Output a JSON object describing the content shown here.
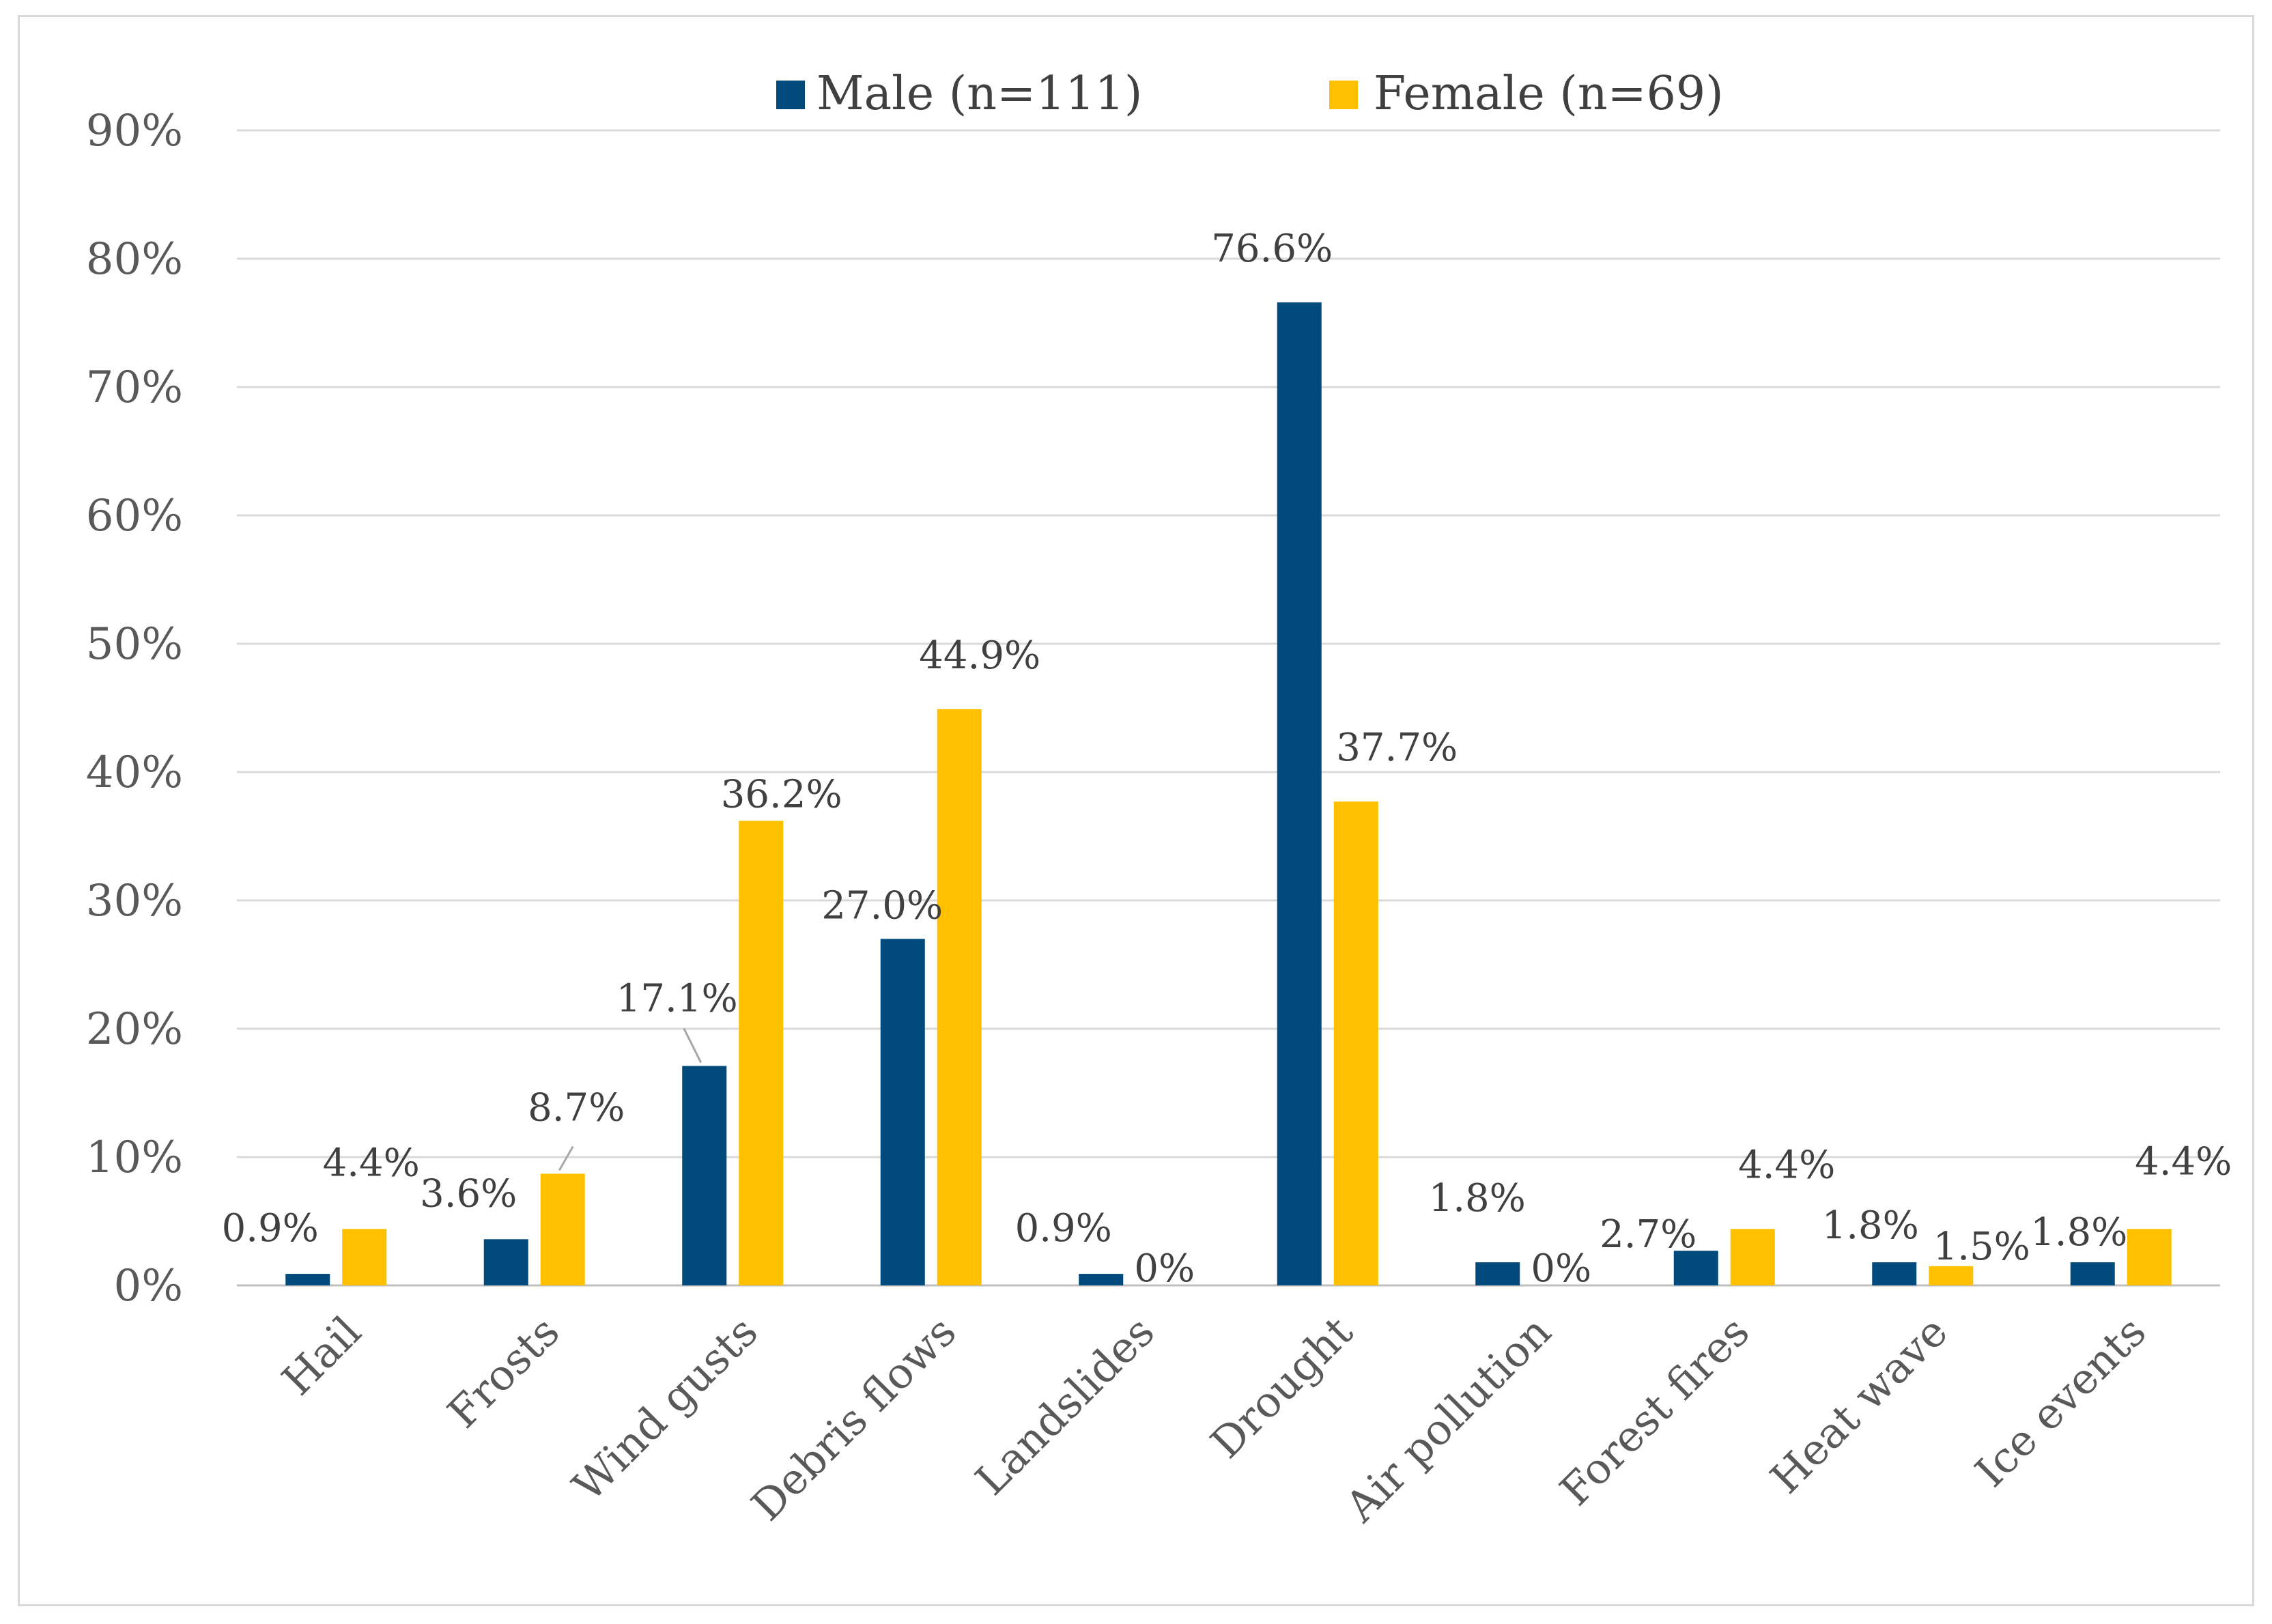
{
  "chart_data": {
    "type": "bar",
    "title": "",
    "xlabel": "",
    "ylabel": "",
    "ylim": [
      0,
      90
    ],
    "y_ticks": [
      "0%",
      "10%",
      "20%",
      "30%",
      "40%",
      "50%",
      "60%",
      "70%",
      "80%",
      "90%"
    ],
    "grid": true,
    "legend_position": "top-center",
    "categories": [
      "Hail",
      "Frosts",
      "Wind gusts",
      "Debris flows",
      "Landslides",
      "Drought",
      "Air pollution",
      "Forest fires",
      "Heat wave",
      "Ice events"
    ],
    "series": [
      {
        "name": "Male (n=111)",
        "color": "#004b7c",
        "values": [
          0.9,
          3.6,
          17.1,
          27.0,
          0.9,
          76.6,
          1.8,
          2.7,
          1.8,
          1.8
        ],
        "labels": [
          "0.9%",
          "3.6%",
          "17.1%",
          "27.0%",
          "0.9%",
          "76.6%",
          "1.8%",
          "2.7%",
          "1.8%",
          "1.8%"
        ]
      },
      {
        "name": "Female (n=69)",
        "color": "#ffc000",
        "values": [
          4.4,
          8.7,
          36.2,
          44.9,
          0,
          37.7,
          0,
          4.4,
          1.5,
          4.4
        ],
        "labels": [
          "4.4%",
          "8.7%",
          "36.2%",
          "44.9%",
          "0%",
          "37.7%",
          "0%",
          "4.4%",
          "1.5%",
          "4.4%"
        ]
      }
    ]
  }
}
